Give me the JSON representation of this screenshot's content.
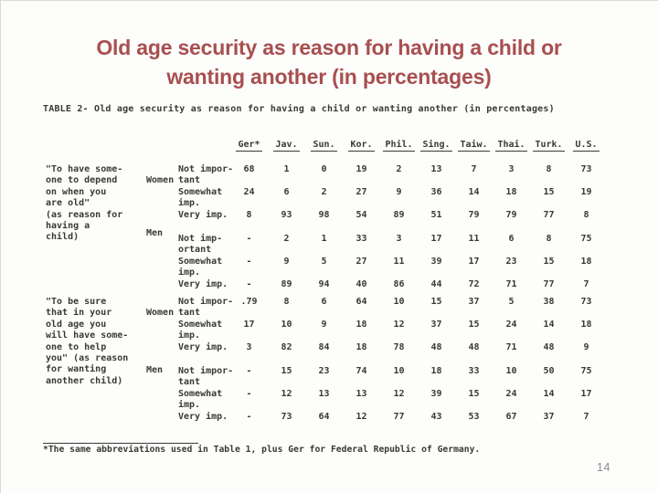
{
  "slide": {
    "title_line1": "Old age security as reason for having a child or",
    "title_line2": "wanting another (in percentages)",
    "title_color": "#a84f4f",
    "page_number": "14"
  },
  "table": {
    "caption": "TABLE 2- Old age security as reason for having a child or wanting another (in percentages)",
    "columns": [
      "Ger*",
      "Jav.",
      "Sun.",
      "Kor.",
      "Phil.",
      "Sing.",
      "Taiw.",
      "Thai.",
      "Turk.",
      "U.S."
    ],
    "groups": [
      {
        "question_lines": [
          "\"To have some-",
          "one to depend",
          "on when you",
          "are old\"",
          "(as reason for",
          "having a",
          "child)"
        ],
        "sections": [
          {
            "gender": "Women",
            "rows": [
              {
                "label_lines": [
                  "Not impor-",
                  "tant"
                ],
                "values": [
                  "68",
                  "1",
                  "0",
                  "19",
                  "2",
                  "13",
                  "7",
                  "3",
                  "8",
                  "73"
                ]
              },
              {
                "label_lines": [
                  "Somewhat",
                  "imp."
                ],
                "values": [
                  "24",
                  "6",
                  "2",
                  "27",
                  "9",
                  "36",
                  "14",
                  "18",
                  "15",
                  "19"
                ]
              },
              {
                "label_lines": [
                  "Very imp."
                ],
                "values": [
                  "8",
                  "93",
                  "98",
                  "54",
                  "89",
                  "51",
                  "79",
                  "79",
                  "77",
                  "8"
                ]
              }
            ]
          },
          {
            "gender": "Men",
            "rows": [
              {
                "label_lines": [
                  "Not imp-",
                  "ortant"
                ],
                "values": [
                  "-",
                  "2",
                  "1",
                  "33",
                  "3",
                  "17",
                  "11",
                  "6",
                  "8",
                  "75"
                ]
              },
              {
                "label_lines": [
                  "Somewhat",
                  "imp."
                ],
                "values": [
                  "-",
                  "9",
                  "5",
                  "27",
                  "11",
                  "39",
                  "17",
                  "23",
                  "15",
                  "18"
                ]
              },
              {
                "label_lines": [
                  "Very imp."
                ],
                "values": [
                  "-",
                  "89",
                  "94",
                  "40",
                  "86",
                  "44",
                  "72",
                  "71",
                  "77",
                  "7"
                ]
              }
            ]
          }
        ]
      },
      {
        "question_lines": [
          "\"To be sure",
          "that in your",
          "old age you",
          "will have some-",
          "one to help",
          "you\" (as reason",
          "for wanting",
          "another child)"
        ],
        "sections": [
          {
            "gender": "Women",
            "rows": [
              {
                "label_lines": [
                  "Not impor-",
                  "tant"
                ],
                "values": [
                  ".79",
                  "8",
                  "6",
                  "64",
                  "10",
                  "15",
                  "37",
                  "5",
                  "38",
                  "73"
                ]
              },
              {
                "label_lines": [
                  "Somewhat",
                  "imp."
                ],
                "values": [
                  "17",
                  "10",
                  "9",
                  "18",
                  "12",
                  "37",
                  "15",
                  "24",
                  "14",
                  "18"
                ]
              },
              {
                "label_lines": [
                  "Very imp."
                ],
                "values": [
                  "3",
                  "82",
                  "84",
                  "18",
                  "78",
                  "48",
                  "48",
                  "71",
                  "48",
                  "9"
                ]
              }
            ]
          },
          {
            "gender": "Men",
            "rows": [
              {
                "label_lines": [
                  "Not impor-",
                  "tant"
                ],
                "values": [
                  "-",
                  "15",
                  "23",
                  "74",
                  "10",
                  "18",
                  "33",
                  "10",
                  "50",
                  "75"
                ]
              },
              {
                "label_lines": [
                  "Somewhat",
                  "imp."
                ],
                "values": [
                  "-",
                  "12",
                  "13",
                  "13",
                  "12",
                  "39",
                  "15",
                  "24",
                  "14",
                  "17"
                ]
              },
              {
                "label_lines": [
                  "Very imp."
                ],
                "values": [
                  "-",
                  "73",
                  "64",
                  "12",
                  "77",
                  "43",
                  "53",
                  "67",
                  "37",
                  "7"
                ]
              }
            ]
          }
        ]
      }
    ],
    "footnote": "*The same abbreviations used in Table 1, plus Ger for Federal Republic of Germany."
  }
}
